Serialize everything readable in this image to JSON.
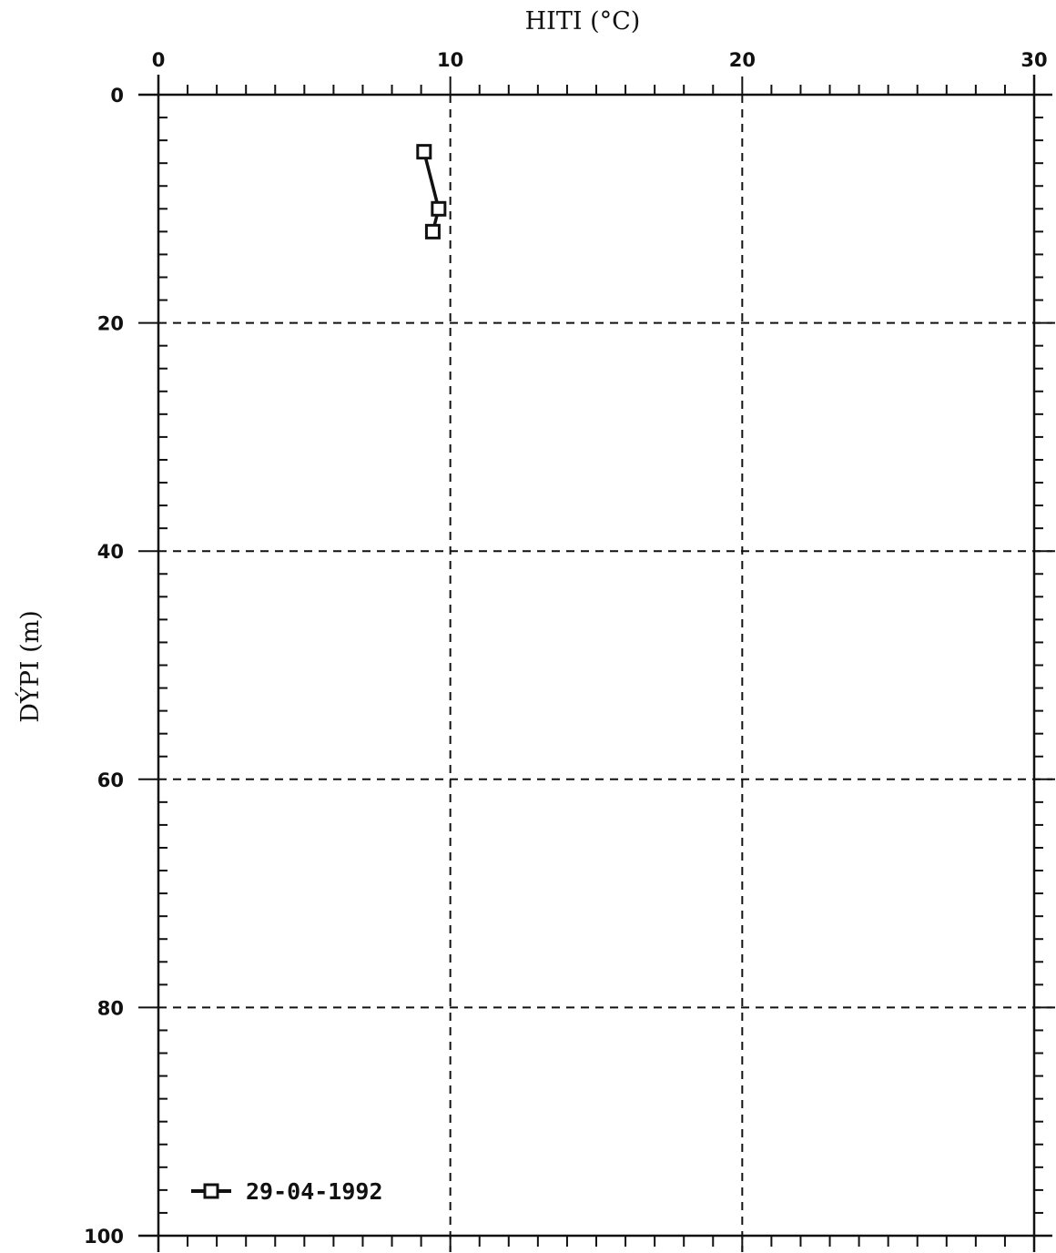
{
  "chart_data": {
    "type": "line",
    "title": "",
    "xlabel": "HITI (°C)",
    "ylabel": "DÝPI (m)",
    "xlim": [
      0,
      30
    ],
    "ylim": [
      0,
      100
    ],
    "y_inverted": true,
    "x_axis_position": "top",
    "x_ticks": [
      "0",
      "10",
      "20",
      "30"
    ],
    "y_ticks": [
      "0",
      "20",
      "40",
      "60",
      "80",
      "100"
    ],
    "grid": true,
    "legend_position": "bottom-left",
    "series": [
      {
        "name": "29-04-1992",
        "marker": "square",
        "points": [
          {
            "x": 9.1,
            "y": 5
          },
          {
            "x": 9.6,
            "y": 10
          },
          {
            "x": 9.4,
            "y": 12
          }
        ]
      }
    ]
  },
  "colors": {
    "ink": "#111111",
    "background": "#ffffff"
  }
}
